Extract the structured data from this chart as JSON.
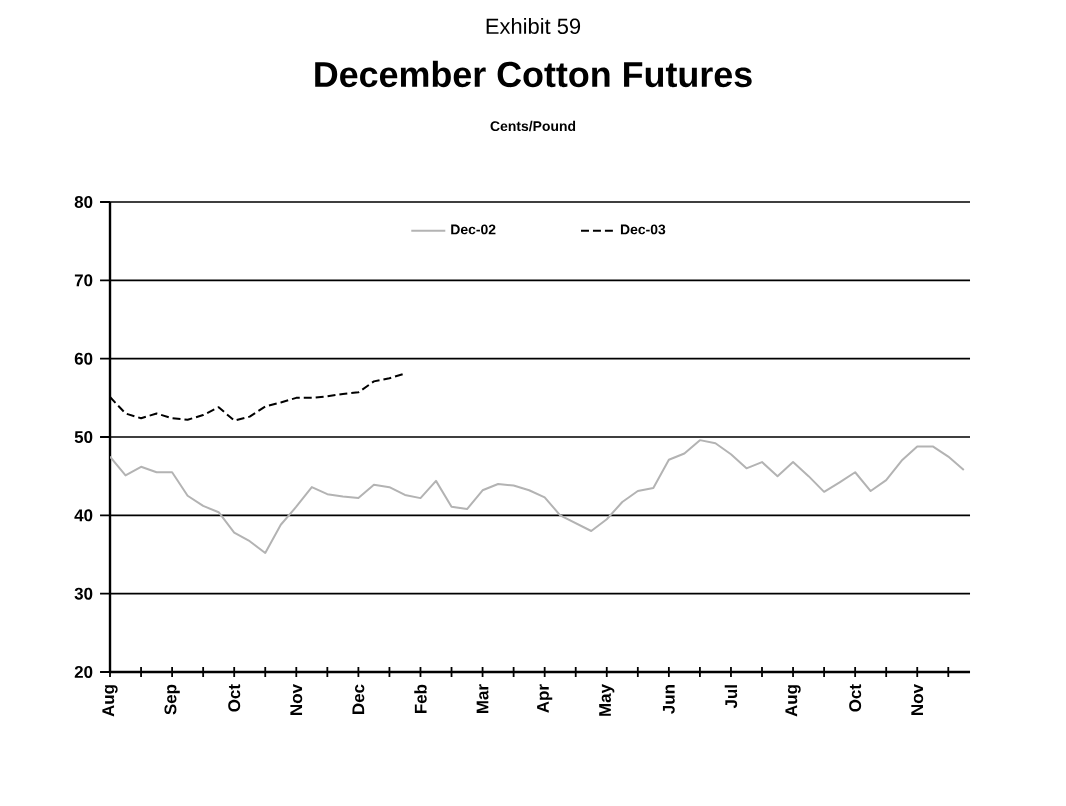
{
  "chart_data": {
    "type": "line",
    "title": "December Cotton Futures",
    "subtitle": "Cents/Pound",
    "annotations": [
      "Exhibit 59"
    ],
    "categories": [
      "Aug",
      null,
      null,
      null,
      "Sep",
      null,
      null,
      null,
      "Oct",
      null,
      null,
      null,
      "Nov",
      null,
      null,
      null,
      "Dec",
      null,
      null,
      null,
      "Feb",
      null,
      null,
      null,
      "Mar",
      null,
      null,
      null,
      "Apr",
      null,
      null,
      null,
      "May",
      null,
      null,
      null,
      "Jun",
      null,
      null,
      null,
      "Jul",
      null,
      null,
      null,
      "Aug",
      null,
      null,
      null,
      "Oct",
      null,
      null,
      null,
      "Nov",
      null,
      null,
      null
    ],
    "ylim": [
      20,
      80
    ],
    "yticks": [
      20,
      30,
      40,
      50,
      60,
      70,
      80
    ],
    "grid": "y",
    "legend": "top",
    "series": [
      {
        "name": "Dec-02",
        "color": "#b3b3b3",
        "line_style": "solid",
        "values": [
          47.5,
          45.1,
          46.2,
          45.5,
          45.5,
          42.5,
          41.2,
          40.4,
          37.8,
          36.7,
          35.2,
          38.8,
          41.1,
          43.6,
          42.7,
          42.4,
          42.2,
          43.9,
          43.6,
          42.6,
          42.2,
          44.4,
          41.1,
          40.8,
          43.2,
          44,
          43.8,
          43.2,
          42.3,
          40,
          39,
          38,
          39.5,
          41.7,
          43.1,
          43.5,
          47.1,
          47.9,
          49.6,
          49.2,
          47.8,
          46,
          46.8,
          45,
          46.8,
          45,
          43,
          44.2,
          45.5,
          43.1,
          44.5,
          47,
          48.8,
          48.8,
          47.5,
          45.8
        ]
      },
      {
        "name": "Dec-03",
        "color": "#000000",
        "line_style": "dashed",
        "values": [
          55.1,
          53,
          52.4,
          53,
          52.4,
          52.2,
          52.8,
          53.8,
          52.1,
          52.6,
          53.9,
          54.4,
          55,
          55,
          55.2,
          55.5,
          55.7,
          57.1,
          57.5,
          58.1,
          null,
          null,
          null,
          null,
          null,
          null,
          null,
          null,
          null,
          null,
          null,
          null,
          null,
          null,
          null,
          null,
          null,
          null,
          null,
          null,
          null,
          null,
          null,
          null,
          null,
          null,
          null,
          null,
          null,
          null,
          null,
          null,
          null,
          null,
          null,
          null
        ]
      }
    ]
  }
}
